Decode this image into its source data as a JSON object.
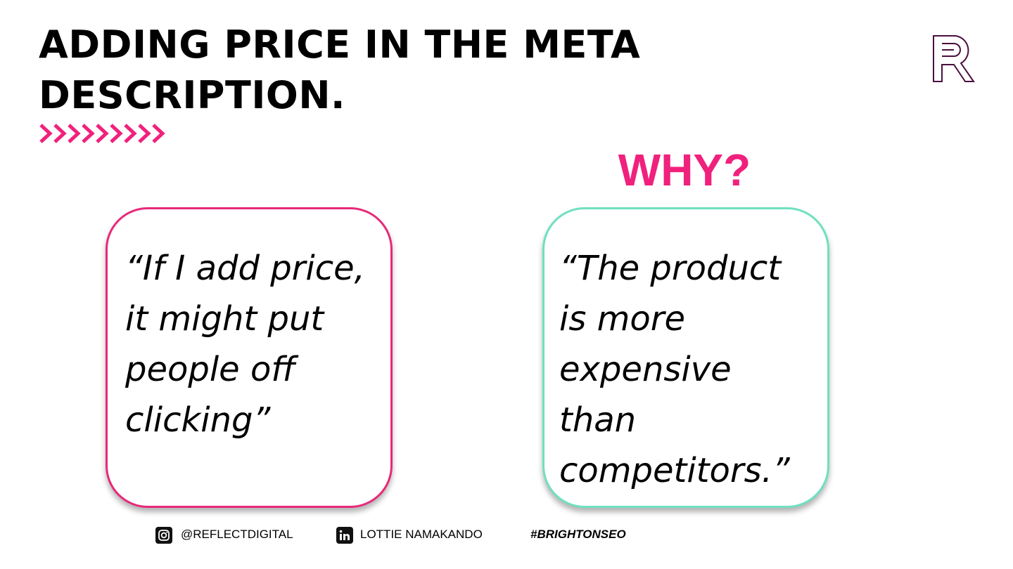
{
  "header": {
    "title_lines": [
      "ADDING PRICE IN THE META",
      "DESCRIPTION."
    ]
  },
  "why": "WHY?",
  "quotes": [
    {
      "lines": [
        "“If I add price,",
        "it might put",
        "people off",
        "clicking”"
      ]
    },
    {
      "lines": [
        "“The product",
        "is more",
        "expensive",
        "than",
        "competitors.”"
      ]
    }
  ],
  "footer": {
    "instagram": "@REFLECTDIGITAL",
    "linkedin": "LOTTIE NAMAKANDO",
    "hashtag": "#BRIGHTONSEO"
  }
}
